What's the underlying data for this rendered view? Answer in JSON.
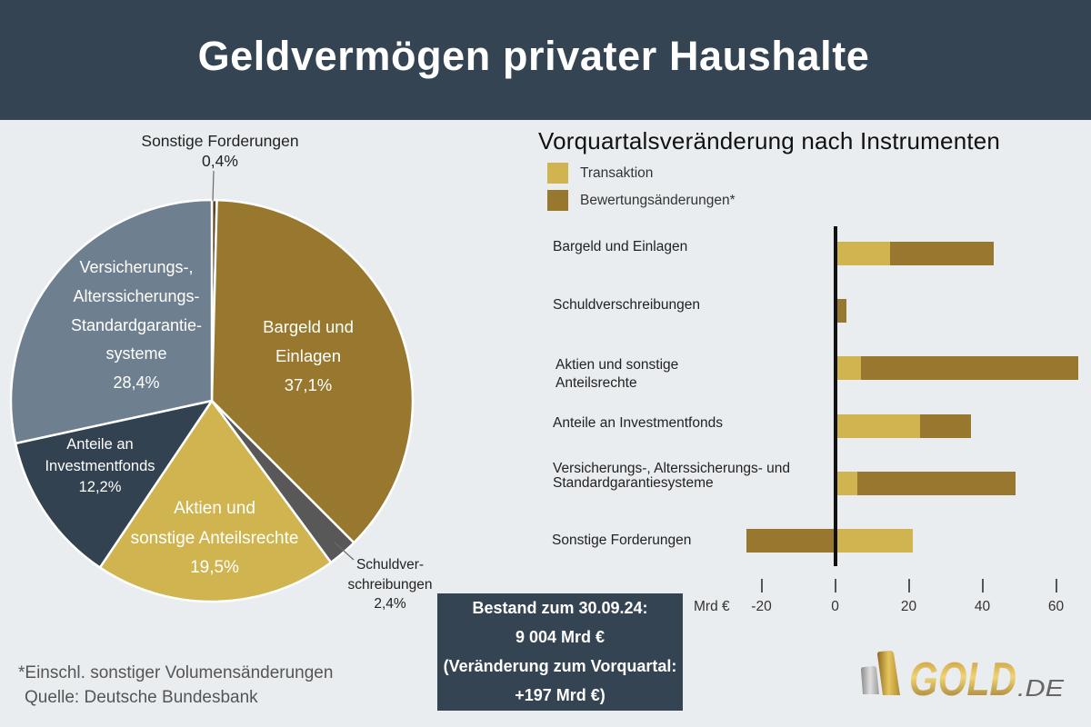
{
  "header": {
    "title": "Geldvermögen privater Haushalte"
  },
  "pie": {
    "labels": {
      "sonstige": [
        "Sonstige Forderungen",
        "0,4%"
      ],
      "bargeld": [
        "Bargeld und",
        "Einlagen",
        "37,1%"
      ],
      "schuldverschreibungen": [
        "Schuldver-",
        "schreibungen",
        "2,4%"
      ],
      "aktien": [
        "Aktien und",
        "sonstige Anteilsrechte",
        "19,5%"
      ],
      "investmentfonds": [
        "Anteile an",
        "Investmentfonds",
        "12,2%"
      ],
      "versicherungen": [
        "Versicherungs-,",
        "Alterssicherungs-",
        "Standardgarantie-",
        "systeme",
        "28,4%"
      ]
    }
  },
  "bar_chart": {
    "title": "Vorquartalsveränderung nach Instrumenten",
    "legend": [
      {
        "label": "Transaktion",
        "color": "#cfb44f"
      },
      {
        "label": "Bewertungsänderungen*",
        "color": "#98782e"
      }
    ],
    "rows": [
      {
        "lines": [
          "Bargeld und Einlagen"
        ]
      },
      {
        "lines": [
          "Schuldverschreibungen"
        ]
      },
      {
        "lines": [
          "Aktien und sonstige",
          "Anteilsrechte"
        ]
      },
      {
        "lines": [
          "Anteile an Investmentfonds"
        ]
      },
      {
        "lines": [
          "Versicherungs-, Alterssicherungs- und",
          "Standardgarantiesysteme"
        ]
      },
      {
        "lines": [
          "Sonstige Forderungen"
        ]
      }
    ],
    "axis_unit": "Mrd €"
  },
  "summary_box": {
    "lines": [
      "Bestand zum 30.09.24:",
      "9 004 Mrd €",
      "(Veränderung zum Vorquartal:",
      "+197 Mrd €)"
    ]
  },
  "footnote": {
    "note": "*Einschl. sonstiger Volumensänderungen",
    "source": "Quelle: Deutsche Bundesbank"
  },
  "logo": {
    "main": "GOLD",
    "suffix": ".DE"
  },
  "colors": {
    "header_bg": "#344452",
    "page_bg": "#e9edf0",
    "transaktion": "#cfb44f",
    "bewertung": "#98782e",
    "summary_bg": "#344452"
  },
  "chart_data": [
    {
      "type": "pie",
      "title": "Geldvermögen privater Haushalte",
      "categories": [
        "Sonstige Forderungen",
        "Bargeld und Einlagen",
        "Schuldverschreibungen",
        "Aktien und sonstige Anteilsrechte",
        "Anteile an Investmentfonds",
        "Versicherungs-, Alterssicherungs- Standardgarantiesysteme"
      ],
      "values": [
        0.4,
        37.1,
        2.4,
        19.5,
        12.2,
        28.4
      ],
      "unit": "%",
      "colors": [
        "#5c4420",
        "#98782e",
        "#585858",
        "#cfb44f",
        "#334250",
        "#6e7f8f"
      ],
      "start_angle": "12 o'clock, clockwise"
    },
    {
      "type": "bar",
      "orientation": "horizontal",
      "stacked": true,
      "title": "Vorquartalsveränderung nach Instrumenten",
      "categories": [
        "Bargeld und Einlagen",
        "Schuldverschreibungen",
        "Aktien und sonstige Anteilsrechte",
        "Anteile an Investmentfonds",
        "Versicherungs-, Alterssicherungs- und Standardgarantiesysteme",
        "Sonstige Forderungen"
      ],
      "series": [
        {
          "name": "Transaktion",
          "values": [
            15,
            0,
            7,
            23,
            6,
            21
          ],
          "color": "#cfb44f"
        },
        {
          "name": "Bewertungsänderungen*",
          "values": [
            28,
            3,
            59,
            14,
            43,
            -24
          ],
          "color": "#98782e"
        }
      ],
      "xlabel": "Mrd €",
      "ylabel": "",
      "xticks": [
        -20,
        0,
        20,
        40,
        60
      ],
      "xlim": [
        -25,
        67
      ],
      "grid": false,
      "legend_position": "top-left"
    }
  ]
}
